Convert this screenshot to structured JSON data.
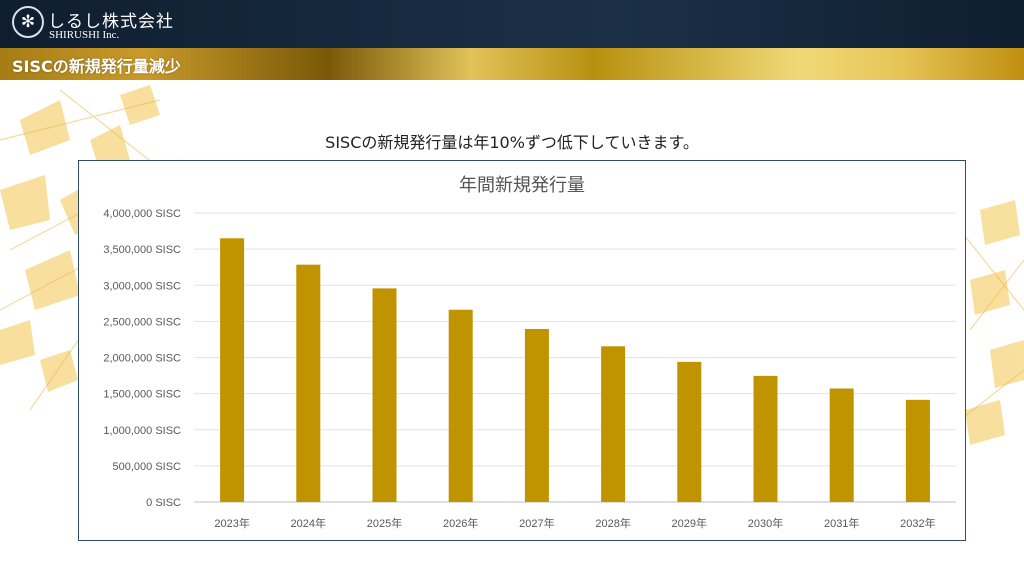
{
  "header": {
    "logo_glyph": "✻",
    "company_name": "しるし株式会社",
    "company_name_en": "SHIRUSHI Inc."
  },
  "slide": {
    "title": "SISCの新規発行量減少",
    "subtitle": "SISCの新規発行量は年10%ずつ低下していきます。"
  },
  "colors": {
    "bar": "#c09400",
    "header_bg": "#14263a",
    "chart_border": "#2f4b6b"
  },
  "chart_data": {
    "type": "bar",
    "title": "年間新規発行量",
    "categories": [
      "2023年",
      "2024年",
      "2025年",
      "2026年",
      "2027年",
      "2028年",
      "2029年",
      "2030年",
      "2031年",
      "2032年"
    ],
    "values": [
      3650000,
      3285000,
      2956500,
      2660850,
      2394765,
      2155289,
      1939760,
      1745784,
      1571205,
      1414085
    ],
    "yticks": [
      "0 SISC",
      "500,000 SISC",
      "1,000,000 SISC",
      "1,500,000 SISC",
      "2,000,000 SISC",
      "2,500,000 SISC",
      "3,000,000 SISC",
      "3,500,000 SISC",
      "4,000,000 SISC"
    ],
    "ylim": [
      0,
      4000000
    ],
    "xlabel": "",
    "ylabel": "",
    "grid": true,
    "legend": "none"
  }
}
